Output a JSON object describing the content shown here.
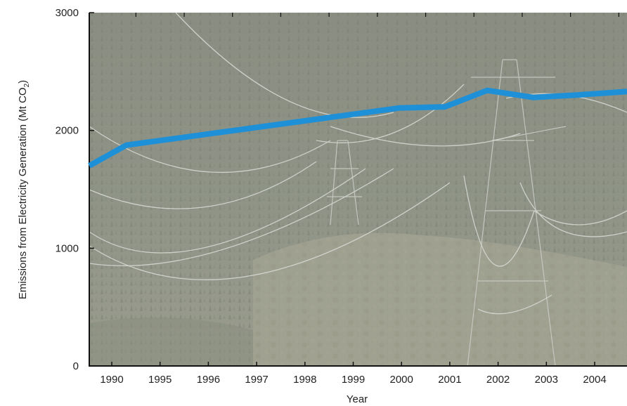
{
  "chart_data": {
    "type": "line",
    "xlabel": "Year",
    "ylabel": "Emissions from Electricity Generation (Mt CO",
    "ylabel_subscript": "2",
    "ylabel_close": ")",
    "categories": [
      "1990",
      "1995",
      "1996",
      "1997",
      "1998",
      "1999",
      "2000",
      "2001",
      "2002",
      "2003",
      "2004"
    ],
    "x_range": [
      1989.75,
      2004.95
    ],
    "ylim": [
      0,
      3000
    ],
    "yticks": [
      "0",
      "1000",
      "2000",
      "3000"
    ],
    "series": [
      {
        "color": "#1e90d8",
        "points": [
          {
            "x": 1989.75,
            "y": 1700
          },
          {
            "x": 1990.8,
            "y": 1875
          },
          {
            "x": 1998.5,
            "y": 2190
          },
          {
            "x": 1999.8,
            "y": 2200
          },
          {
            "x": 2001.0,
            "y": 2340
          },
          {
            "x": 2002.3,
            "y": 2280
          },
          {
            "x": 2003.5,
            "y": 2300
          },
          {
            "x": 2004.95,
            "y": 2330
          }
        ]
      }
    ],
    "grid": false,
    "background": "photo of forested hillside with electricity transmission pylons and power lines"
  }
}
